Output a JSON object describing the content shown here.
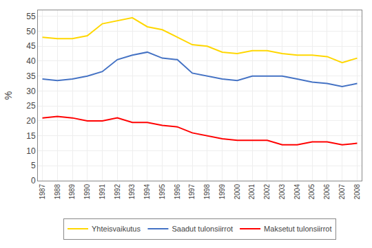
{
  "chart_data": {
    "type": "line",
    "ylabel": "%",
    "x": [
      1987,
      1988,
      1989,
      1990,
      1991,
      1992,
      1993,
      1994,
      1995,
      1996,
      1997,
      1998,
      1999,
      2000,
      2001,
      2002,
      2003,
      2004,
      2005,
      2006,
      2007,
      2008
    ],
    "xlim": [
      1986.7,
      2008.3
    ],
    "xticks": [
      1987,
      1988,
      1989,
      1990,
      1991,
      1992,
      1993,
      1994,
      1995,
      1996,
      1997,
      1998,
      1999,
      2000,
      2001,
      2002,
      2003,
      2004,
      2005,
      2006,
      2007,
      2008
    ],
    "ylim": [
      0,
      57
    ],
    "yticks": [
      0,
      5,
      10,
      15,
      20,
      25,
      30,
      35,
      40,
      45,
      50,
      55
    ],
    "grid": true,
    "legend": "bottom",
    "series": [
      {
        "name": "Yhteisvaikutus",
        "color": "#FFD700",
        "values": [
          48.0,
          47.5,
          47.5,
          48.5,
          52.5,
          53.5,
          54.5,
          51.5,
          50.5,
          48.0,
          45.5,
          45.0,
          43.0,
          42.5,
          43.5,
          43.5,
          42.5,
          42.0,
          42.0,
          41.5,
          39.5,
          41.0
        ]
      },
      {
        "name": "Saadut tulonsiirrot",
        "color": "#4472C4",
        "values": [
          34.0,
          33.5,
          34.0,
          35.0,
          36.5,
          40.5,
          42.0,
          43.0,
          41.0,
          40.5,
          36.0,
          35.0,
          34.0,
          33.5,
          35.0,
          35.0,
          35.0,
          34.0,
          33.0,
          32.5,
          31.5,
          32.5
        ]
      },
      {
        "name": "Maksetut tulonsiirrot",
        "color": "#FF0000",
        "values": [
          21.0,
          21.5,
          21.0,
          20.0,
          20.0,
          21.0,
          19.5,
          19.5,
          18.5,
          18.0,
          16.0,
          15.0,
          14.0,
          13.5,
          13.5,
          13.5,
          12.0,
          12.0,
          13.0,
          13.0,
          12.0,
          12.5
        ]
      }
    ]
  }
}
